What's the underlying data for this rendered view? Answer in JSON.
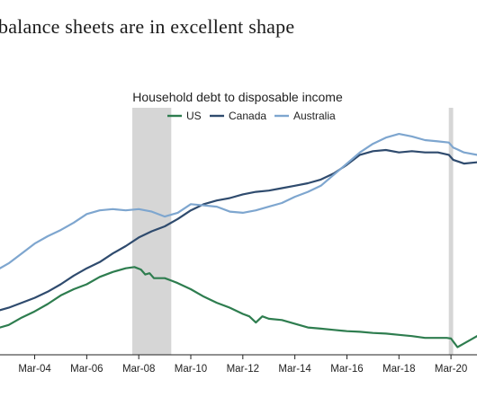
{
  "page": {
    "headline": "balance sheets are in excellent shape"
  },
  "chart_data": {
    "type": "line",
    "title": "Household debt to disposable income",
    "xlabel": "",
    "ylabel": "",
    "x_tick_labels": [
      "Mar-04",
      "Mar-06",
      "Mar-08",
      "Mar-10",
      "Mar-12",
      "Mar-14",
      "Mar-16",
      "Mar-18",
      "Mar-20"
    ],
    "x_range": [
      "2002-11",
      "2021-03"
    ],
    "grid": false,
    "legend": "top-center",
    "recession_shading": [
      {
        "start": "2007-12",
        "end": "2009-06"
      },
      {
        "start": "2020-02",
        "end": "2020-04"
      }
    ],
    "series": [
      {
        "name": "US",
        "color": "#2e7d4f",
        "points": [
          [
            "2002-11",
            0.2
          ],
          [
            "2003-03",
            0.22
          ],
          [
            "2003-09",
            0.28
          ],
          [
            "2004-03",
            0.33
          ],
          [
            "2004-09",
            0.39
          ],
          [
            "2005-03",
            0.46
          ],
          [
            "2005-09",
            0.51
          ],
          [
            "2006-03",
            0.55
          ],
          [
            "2006-09",
            0.61
          ],
          [
            "2007-03",
            0.65
          ],
          [
            "2007-09",
            0.68
          ],
          [
            "2008-01",
            0.69
          ],
          [
            "2008-04",
            0.67
          ],
          [
            "2008-06",
            0.63
          ],
          [
            "2008-08",
            0.64
          ],
          [
            "2008-10",
            0.6
          ],
          [
            "2009-03",
            0.6
          ],
          [
            "2009-06",
            0.58
          ],
          [
            "2009-09",
            0.56
          ],
          [
            "2010-03",
            0.51
          ],
          [
            "2010-09",
            0.45
          ],
          [
            "2011-03",
            0.4
          ],
          [
            "2011-09",
            0.36
          ],
          [
            "2012-03",
            0.31
          ],
          [
            "2012-06",
            0.29
          ],
          [
            "2012-09",
            0.24
          ],
          [
            "2012-12",
            0.29
          ],
          [
            "2013-03",
            0.27
          ],
          [
            "2013-09",
            0.26
          ],
          [
            "2014-03",
            0.23
          ],
          [
            "2014-09",
            0.2
          ],
          [
            "2015-03",
            0.19
          ],
          [
            "2015-09",
            0.18
          ],
          [
            "2016-03",
            0.17
          ],
          [
            "2016-09",
            0.165
          ],
          [
            "2017-03",
            0.155
          ],
          [
            "2017-09",
            0.15
          ],
          [
            "2018-03",
            0.14
          ],
          [
            "2018-09",
            0.13
          ],
          [
            "2019-03",
            0.115
          ],
          [
            "2019-09",
            0.115
          ],
          [
            "2020-01",
            0.115
          ],
          [
            "2020-03",
            0.11
          ],
          [
            "2020-06",
            0.04
          ],
          [
            "2020-09",
            0.07
          ],
          [
            "2020-12",
            0.1
          ],
          [
            "2021-03",
            0.13
          ]
        ]
      },
      {
        "name": "Canada",
        "color": "#2f4b6e",
        "points": [
          [
            "2002-11",
            0.34
          ],
          [
            "2003-03",
            0.36
          ],
          [
            "2003-09",
            0.4
          ],
          [
            "2004-03",
            0.44
          ],
          [
            "2004-09",
            0.49
          ],
          [
            "2005-03",
            0.55
          ],
          [
            "2005-09",
            0.62
          ],
          [
            "2006-03",
            0.68
          ],
          [
            "2006-09",
            0.73
          ],
          [
            "2007-03",
            0.8
          ],
          [
            "2007-09",
            0.86
          ],
          [
            "2008-03",
            0.93
          ],
          [
            "2008-09",
            0.98
          ],
          [
            "2009-03",
            1.02
          ],
          [
            "2009-09",
            1.08
          ],
          [
            "2010-03",
            1.15
          ],
          [
            "2010-09",
            1.2
          ],
          [
            "2011-03",
            1.23
          ],
          [
            "2011-09",
            1.25
          ],
          [
            "2012-03",
            1.28
          ],
          [
            "2012-09",
            1.3
          ],
          [
            "2013-03",
            1.31
          ],
          [
            "2013-09",
            1.33
          ],
          [
            "2014-03",
            1.35
          ],
          [
            "2014-09",
            1.37
          ],
          [
            "2015-03",
            1.4
          ],
          [
            "2015-09",
            1.45
          ],
          [
            "2016-03",
            1.52
          ],
          [
            "2016-09",
            1.6
          ],
          [
            "2017-03",
            1.63
          ],
          [
            "2017-09",
            1.64
          ],
          [
            "2018-03",
            1.62
          ],
          [
            "2018-09",
            1.63
          ],
          [
            "2019-03",
            1.62
          ],
          [
            "2019-09",
            1.62
          ],
          [
            "2020-02",
            1.6
          ],
          [
            "2020-04",
            1.56
          ],
          [
            "2020-09",
            1.53
          ],
          [
            "2021-03",
            1.54
          ]
        ]
      },
      {
        "name": "Australia",
        "color": "#7ea6cf",
        "points": [
          [
            "2002-11",
            0.68
          ],
          [
            "2003-03",
            0.72
          ],
          [
            "2003-09",
            0.8
          ],
          [
            "2004-03",
            0.88
          ],
          [
            "2004-09",
            0.94
          ],
          [
            "2005-03",
            0.99
          ],
          [
            "2005-09",
            1.05
          ],
          [
            "2006-03",
            1.12
          ],
          [
            "2006-09",
            1.15
          ],
          [
            "2007-03",
            1.16
          ],
          [
            "2007-09",
            1.15
          ],
          [
            "2008-03",
            1.16
          ],
          [
            "2008-09",
            1.14
          ],
          [
            "2009-03",
            1.1
          ],
          [
            "2009-09",
            1.13
          ],
          [
            "2010-03",
            1.2
          ],
          [
            "2010-09",
            1.19
          ],
          [
            "2011-03",
            1.18
          ],
          [
            "2011-09",
            1.14
          ],
          [
            "2012-03",
            1.13
          ],
          [
            "2012-09",
            1.15
          ],
          [
            "2013-03",
            1.18
          ],
          [
            "2013-09",
            1.21
          ],
          [
            "2014-03",
            1.26
          ],
          [
            "2014-09",
            1.3
          ],
          [
            "2015-03",
            1.35
          ],
          [
            "2015-09",
            1.44
          ],
          [
            "2016-03",
            1.53
          ],
          [
            "2016-09",
            1.62
          ],
          [
            "2017-03",
            1.69
          ],
          [
            "2017-09",
            1.74
          ],
          [
            "2018-03",
            1.77
          ],
          [
            "2018-09",
            1.75
          ],
          [
            "2019-03",
            1.72
          ],
          [
            "2019-09",
            1.71
          ],
          [
            "2020-02",
            1.7
          ],
          [
            "2020-04",
            1.66
          ],
          [
            "2020-09",
            1.62
          ],
          [
            "2021-03",
            1.6
          ]
        ]
      }
    ]
  }
}
